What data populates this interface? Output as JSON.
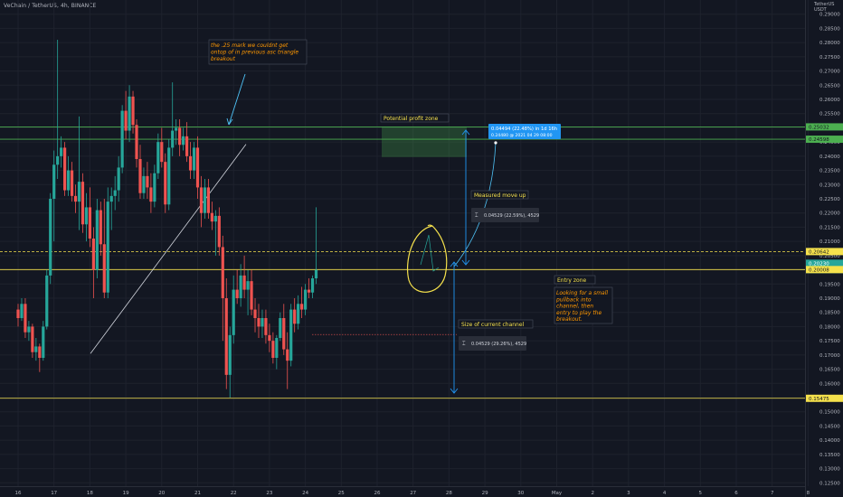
{
  "header": {
    "symbol": "VeChain / TetherUS, 4h, BINANCE",
    "currency_top": "TetherUS",
    "currency_bottom": "USDT"
  },
  "chart_data": {
    "type": "candlestick",
    "ylim": [
      0.12,
      0.295
    ],
    "x_ticks": [
      "16",
      "17",
      "18",
      "19",
      "20",
      "21",
      "22",
      "23",
      "24",
      "25",
      "26",
      "27",
      "28",
      "29",
      "30",
      "May",
      "2",
      "3",
      "4",
      "5",
      "6",
      "7",
      "8"
    ],
    "y_ticks": [
      "0.29000",
      "0.28500",
      "0.28000",
      "0.27500",
      "0.27000",
      "0.26500",
      "0.26000",
      "0.25500",
      "0.25000",
      "0.24500",
      "0.24000",
      "0.23500",
      "0.23000",
      "0.22500",
      "0.22000",
      "0.21500",
      "0.21000",
      "0.20500",
      "0.20000",
      "0.19500",
      "0.19000",
      "0.18500",
      "0.18000",
      "0.17500",
      "0.17000",
      "0.16500",
      "0.16000",
      "0.15500",
      "0.15000",
      "0.14500",
      "0.14000",
      "0.13500",
      "0.13000",
      "0.12500"
    ],
    "price_labels": [
      {
        "value": 0.25032,
        "text": "0.25032",
        "color": "#4caf50"
      },
      {
        "value": 0.24598,
        "text": "0.24598",
        "color": "#4caf50"
      },
      {
        "value": 0.20642,
        "text": "0.20642",
        "color": "#f5e14c"
      },
      {
        "value": 0.2023,
        "text": "0.20230",
        "color": "#26a69a"
      },
      {
        "value": 0.20008,
        "text": "0.20008",
        "color": "#f5e14c"
      },
      {
        "value": 0.15475,
        "text": "0.15475",
        "color": "#f5e14c"
      }
    ],
    "countdown": "01:24:16",
    "horizontal_lines": [
      {
        "value": 0.25032,
        "color": "#4caf50",
        "style": "solid"
      },
      {
        "value": 0.24598,
        "color": "#4caf50",
        "style": "solid"
      },
      {
        "value": 0.20642,
        "color": "#f5e14c",
        "style": "dashed"
      },
      {
        "value": 0.20008,
        "color": "#f5e14c",
        "style": "solid"
      },
      {
        "value": 0.15475,
        "color": "#f5e14c",
        "style": "solid"
      }
    ],
    "candles": [
      [
        16.0,
        0.186,
        0.188,
        0.18,
        0.183
      ],
      [
        16.1,
        0.183,
        0.19,
        0.182,
        0.188
      ],
      [
        16.2,
        0.188,
        0.19,
        0.176,
        0.178
      ],
      [
        16.3,
        0.178,
        0.182,
        0.175,
        0.18
      ],
      [
        16.4,
        0.18,
        0.181,
        0.169,
        0.171
      ],
      [
        16.5,
        0.171,
        0.176,
        0.168,
        0.173
      ],
      [
        16.6,
        0.173,
        0.174,
        0.164,
        0.169
      ],
      [
        16.7,
        0.169,
        0.182,
        0.168,
        0.18
      ],
      [
        16.8,
        0.18,
        0.2,
        0.179,
        0.198
      ],
      [
        16.9,
        0.198,
        0.227,
        0.195,
        0.225
      ],
      [
        17.0,
        0.225,
        0.242,
        0.21,
        0.237
      ],
      [
        17.1,
        0.237,
        0.281,
        0.232,
        0.24
      ],
      [
        17.2,
        0.24,
        0.247,
        0.236,
        0.243
      ],
      [
        17.3,
        0.243,
        0.245,
        0.226,
        0.228
      ],
      [
        17.4,
        0.228,
        0.24,
        0.226,
        0.235
      ],
      [
        17.5,
        0.235,
        0.238,
        0.224,
        0.226
      ],
      [
        17.6,
        0.226,
        0.23,
        0.22,
        0.224
      ],
      [
        17.7,
        0.224,
        0.254,
        0.214,
        0.231
      ],
      [
        17.8,
        0.231,
        0.234,
        0.213,
        0.216
      ],
      [
        17.9,
        0.216,
        0.227,
        0.21,
        0.222
      ],
      [
        18.0,
        0.222,
        0.229,
        0.208,
        0.211
      ],
      [
        18.1,
        0.211,
        0.215,
        0.19,
        0.2
      ],
      [
        18.2,
        0.2,
        0.225,
        0.197,
        0.221
      ],
      [
        18.3,
        0.221,
        0.224,
        0.205,
        0.209
      ],
      [
        18.4,
        0.209,
        0.225,
        0.19,
        0.192
      ],
      [
        18.5,
        0.192,
        0.229,
        0.19,
        0.224
      ],
      [
        18.6,
        0.224,
        0.229,
        0.214,
        0.226
      ],
      [
        18.7,
        0.226,
        0.233,
        0.221,
        0.228
      ],
      [
        18.8,
        0.228,
        0.24,
        0.224,
        0.236
      ],
      [
        18.9,
        0.236,
        0.258,
        0.234,
        0.256
      ],
      [
        19.0,
        0.256,
        0.263,
        0.246,
        0.249
      ],
      [
        19.1,
        0.249,
        0.265,
        0.245,
        0.261
      ],
      [
        19.2,
        0.261,
        0.263,
        0.248,
        0.251
      ],
      [
        19.3,
        0.251,
        0.253,
        0.236,
        0.239
      ],
      [
        19.4,
        0.239,
        0.244,
        0.225,
        0.227
      ],
      [
        19.5,
        0.227,
        0.236,
        0.225,
        0.233
      ],
      [
        19.6,
        0.233,
        0.238,
        0.225,
        0.229
      ],
      [
        19.7,
        0.229,
        0.234,
        0.22,
        0.224
      ],
      [
        19.8,
        0.224,
        0.237,
        0.222,
        0.234
      ],
      [
        19.9,
        0.234,
        0.248,
        0.232,
        0.245
      ],
      [
        20.0,
        0.245,
        0.25,
        0.236,
        0.238
      ],
      [
        20.1,
        0.238,
        0.241,
        0.22,
        0.223
      ],
      [
        20.2,
        0.223,
        0.246,
        0.221,
        0.243
      ],
      [
        20.3,
        0.243,
        0.266,
        0.24,
        0.249
      ],
      [
        20.4,
        0.249,
        0.253,
        0.244,
        0.25
      ],
      [
        20.5,
        0.25,
        0.253,
        0.24,
        0.244
      ],
      [
        20.6,
        0.244,
        0.25,
        0.242,
        0.247
      ],
      [
        20.7,
        0.247,
        0.252,
        0.238,
        0.24
      ],
      [
        20.8,
        0.24,
        0.245,
        0.232,
        0.235
      ],
      [
        20.9,
        0.235,
        0.245,
        0.232,
        0.243
      ],
      [
        21.0,
        0.243,
        0.247,
        0.225,
        0.229
      ],
      [
        21.1,
        0.229,
        0.233,
        0.215,
        0.22
      ],
      [
        21.2,
        0.22,
        0.232,
        0.218,
        0.229
      ],
      [
        21.3,
        0.229,
        0.232,
        0.218,
        0.22
      ],
      [
        21.4,
        0.22,
        0.224,
        0.214,
        0.217
      ],
      [
        21.5,
        0.217,
        0.221,
        0.205,
        0.219
      ],
      [
        21.6,
        0.219,
        0.222,
        0.205,
        0.208
      ],
      [
        21.7,
        0.208,
        0.212,
        0.175,
        0.19
      ],
      [
        21.8,
        0.19,
        0.197,
        0.158,
        0.163
      ],
      [
        21.9,
        0.163,
        0.18,
        0.155,
        0.177
      ],
      [
        22.0,
        0.177,
        0.198,
        0.174,
        0.193
      ],
      [
        22.1,
        0.193,
        0.2,
        0.188,
        0.19
      ],
      [
        22.2,
        0.19,
        0.202,
        0.187,
        0.198
      ],
      [
        22.3,
        0.198,
        0.205,
        0.19,
        0.193
      ],
      [
        22.4,
        0.193,
        0.2,
        0.184,
        0.196
      ],
      [
        22.5,
        0.196,
        0.2,
        0.184,
        0.186
      ],
      [
        22.6,
        0.186,
        0.19,
        0.178,
        0.183
      ],
      [
        22.7,
        0.183,
        0.188,
        0.176,
        0.18
      ],
      [
        22.8,
        0.18,
        0.186,
        0.176,
        0.183
      ],
      [
        22.9,
        0.183,
        0.186,
        0.174,
        0.177
      ],
      [
        23.0,
        0.177,
        0.181,
        0.171,
        0.175
      ],
      [
        23.1,
        0.175,
        0.178,
        0.167,
        0.169
      ],
      [
        23.2,
        0.169,
        0.177,
        0.165,
        0.176
      ],
      [
        23.3,
        0.176,
        0.185,
        0.175,
        0.183
      ],
      [
        23.4,
        0.183,
        0.188,
        0.17,
        0.172
      ],
      [
        23.5,
        0.172,
        0.178,
        0.158,
        0.168
      ],
      [
        23.6,
        0.168,
        0.188,
        0.166,
        0.186
      ],
      [
        23.7,
        0.186,
        0.19,
        0.178,
        0.181
      ],
      [
        23.8,
        0.181,
        0.191,
        0.179,
        0.188
      ],
      [
        23.9,
        0.188,
        0.194,
        0.183,
        0.186
      ],
      [
        24.0,
        0.186,
        0.195,
        0.184,
        0.193
      ],
      [
        24.1,
        0.193,
        0.197,
        0.19,
        0.192
      ],
      [
        24.2,
        0.192,
        0.198,
        0.19,
        0.197
      ],
      [
        24.3,
        0.197,
        0.222,
        0.195,
        0.2
      ]
    ],
    "annotations": [
      {
        "text": "the .25 mark we couldnt get ontop of in previous asc triangle breakout",
        "color": "#ff9800"
      },
      {
        "text": "Potential profit zone",
        "color": "#f5e14c"
      },
      {
        "text": "0.04494 (22.48%) in 1d 16h",
        "color": "#ffffff"
      },
      {
        "text": "0.24480 @ 2021 04 29 08:00",
        "color": "#ffffff"
      },
      {
        "text": "Measured move up",
        "color": "#f5e14c"
      },
      {
        "text": "0.04529 (22.59%), 4529",
        "color": "#d1d4dc"
      },
      {
        "text": "Entry zone",
        "color": "#f5e14c"
      },
      {
        "text": "Looking for a small pullback into channel, then entry to play the breakout.",
        "color": "#ff9800"
      },
      {
        "text": "Size of current channel",
        "color": "#f5e14c"
      },
      {
        "text": "0.04529 (29.26%), 4529",
        "color": "#d1d4dc"
      }
    ],
    "colors": {
      "up": "#26a69a",
      "down": "#ef5350",
      "bg": "#131722",
      "grid": "#1e222d",
      "axis_text": "#b2b5be"
    }
  }
}
